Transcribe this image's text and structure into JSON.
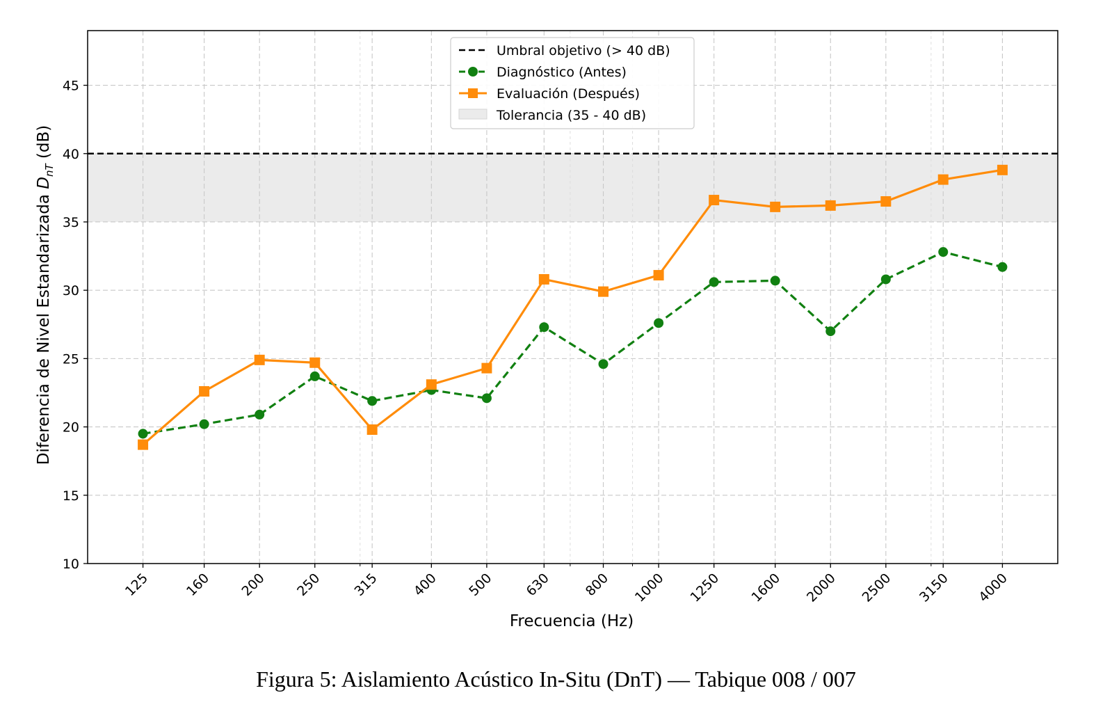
{
  "chart_data": {
    "type": "line",
    "xlabel": "Frecuencia (Hz)",
    "ylabel": "Diferencia de Nivel Estandarizada",
    "ylabel_symbol": "D",
    "ylabel_subscript": "nT",
    "ylabel_unit": "(dB)",
    "categories": [
      "125",
      "160",
      "200",
      "250",
      "315",
      "400",
      "500",
      "630",
      "800",
      "1000",
      "1250",
      "1600",
      "2000",
      "2500",
      "3150",
      "4000"
    ],
    "x_scale": "log",
    "xlim": [
      100,
      5000
    ],
    "ylim": [
      10,
      49
    ],
    "yticks": [
      10,
      15,
      20,
      25,
      30,
      35,
      40,
      45
    ],
    "grid": true,
    "legend_position": "top-center",
    "series": [
      {
        "name": "Diagnóstico (Antes)",
        "style": "dashed",
        "marker": "circle",
        "color": "#118011",
        "values": [
          19.5,
          20.2,
          20.9,
          23.7,
          21.9,
          22.7,
          22.1,
          27.3,
          24.6,
          27.6,
          30.6,
          30.7,
          27.0,
          30.8,
          32.8,
          31.7
        ]
      },
      {
        "name": "Evaluación (Después)",
        "style": "solid",
        "marker": "square",
        "color": "#ff8c0a",
        "values": [
          18.7,
          22.6,
          24.9,
          24.7,
          19.8,
          23.1,
          24.3,
          30.8,
          29.9,
          31.1,
          36.6,
          36.1,
          36.2,
          36.5,
          38.1,
          38.8
        ]
      }
    ],
    "threshold": {
      "name": "Umbral objetivo (> 40 dB)",
      "value": 40,
      "color": "#000000",
      "style": "dashed"
    },
    "band": {
      "name": "Tolerancia (35 - 40 dB)",
      "from": 35,
      "to": 40,
      "color": "#ebebeb"
    }
  },
  "caption": "Figura 5: Aislamiento Acústico In-Situ (DnT) — Tabique 008 / 007"
}
